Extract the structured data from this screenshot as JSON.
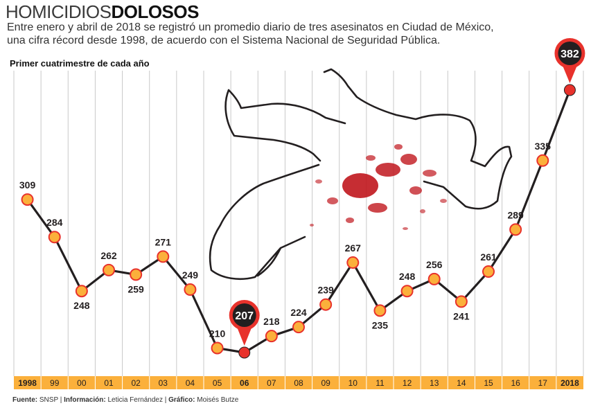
{
  "header": {
    "title_light": "HOMICIDIOS",
    "title_bold": "DOLOSOS",
    "subtitle_line1": "Entre enero y abril de 2018 se registró un promedio diario de tres asesinatos en Ciudad de México,",
    "subtitle_line2": "una cifra récord desde 1998, de acuerdo con el Sistema Nacional de Seguridad Pública."
  },
  "section_label": "Primer cuatrimestre de cada año",
  "chart_data": {
    "type": "line",
    "categories": [
      "1998",
      "99",
      "00",
      "01",
      "02",
      "03",
      "04",
      "05",
      "06",
      "07",
      "08",
      "09",
      "10",
      "11",
      "12",
      "13",
      "14",
      "15",
      "16",
      "17",
      "2018"
    ],
    "values": [
      309,
      284,
      248,
      262,
      259,
      271,
      249,
      210,
      207,
      218,
      224,
      239,
      267,
      235,
      248,
      256,
      241,
      261,
      289,
      335,
      382
    ],
    "highlight": [
      {
        "category": "06",
        "value": 207,
        "color": "#231f20"
      },
      {
        "category": "2018",
        "value": 382,
        "color": "#231f20"
      }
    ],
    "grid": "vertical",
    "colors": {
      "line": "#231f20",
      "point_fill": "#fbb03b",
      "point_stroke": "#e8322c",
      "highlight_point": "#e8322c",
      "axis_bar": "#fbb03b"
    },
    "illustration": "body-outline-with-blood-splatter"
  },
  "footer": {
    "source_label": "Fuente:",
    "source_value": "SNSP",
    "info_label": "Información:",
    "info_value": "Leticia Fernández",
    "graphic_label": "Gráfico:",
    "graphic_value": "Moisés Butze",
    "separator": "|"
  }
}
